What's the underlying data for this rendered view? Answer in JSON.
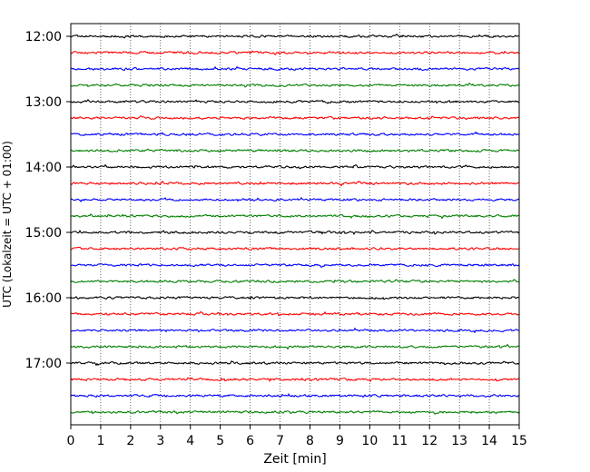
{
  "chart_data": {
    "type": "line",
    "title": "",
    "xlabel": "Zeit  [min]",
    "ylabel": "UTC (Lokalzeit = UTC + 01:00)",
    "xlim": [
      0,
      15
    ],
    "x_ticks": [
      "0",
      "1",
      "2",
      "3",
      "4",
      "5",
      "6",
      "7",
      "8",
      "9",
      "10",
      "11",
      "12",
      "13",
      "14",
      "15"
    ],
    "y_tick_labels": [
      "12:00",
      "13:00",
      "14:00",
      "15:00",
      "16:00",
      "17:00"
    ],
    "y_ticks_hours": [
      12,
      13,
      14,
      15,
      16,
      17
    ],
    "trace_interval_min": 15,
    "trace_starts": [
      "12:00",
      "12:15",
      "12:30",
      "12:45",
      "13:00",
      "13:15",
      "13:30",
      "13:45",
      "14:00",
      "14:15",
      "14:30",
      "14:45",
      "15:00",
      "15:15",
      "15:30",
      "15:45",
      "16:00",
      "16:15",
      "16:30",
      "16:45",
      "17:00",
      "17:15",
      "17:30",
      "17:45"
    ],
    "trace_colors": [
      "#000000",
      "#ff0000",
      "#0000ff",
      "#008000"
    ],
    "grid": "vertical-dotted",
    "legend": "none"
  }
}
